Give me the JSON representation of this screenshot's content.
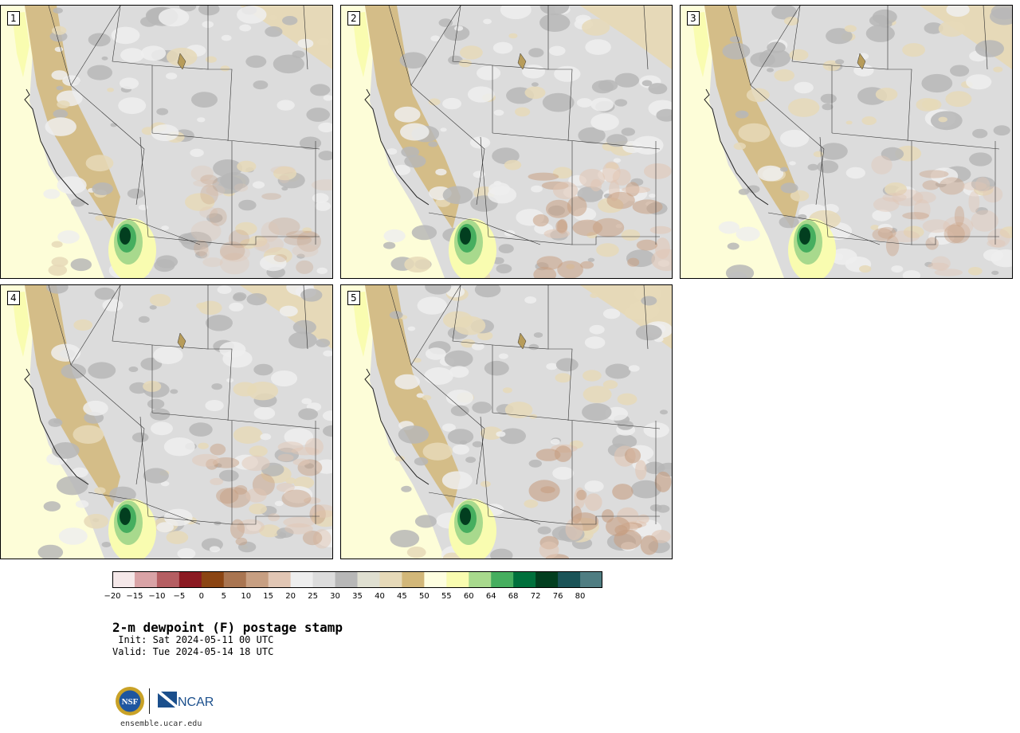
{
  "panels": [
    {
      "label": "1"
    },
    {
      "label": "2"
    },
    {
      "label": "3"
    },
    {
      "label": "4"
    },
    {
      "label": "5"
    }
  ],
  "colorbar": {
    "ticks": [
      "−20",
      "−15",
      "−10",
      "−5",
      "0",
      "5",
      "10",
      "15",
      "20",
      "25",
      "30",
      "35",
      "40",
      "45",
      "50",
      "55",
      "60",
      "64",
      "68",
      "72",
      "76",
      "80"
    ],
    "colors": [
      "#f5e8e9",
      "#d9a3a6",
      "#b55e62",
      "#8b1a22",
      "#8b4513",
      "#a97551",
      "#c79f82",
      "#e1c6b4",
      "#eeeeee",
      "#dcdcdc",
      "#b7b7b7",
      "#dfdfd1",
      "#e6d9b8",
      "#d2b779",
      "#fefee0",
      "#f9fcb0",
      "#a8d98d",
      "#46ae5f",
      "#00703c",
      "#023e1f",
      "#1a5357",
      "#4f7d82"
    ]
  },
  "title": "2-m dewpoint (F) postage stamp",
  "init_line": " Init: Sat 2024-05-11 00 UTC",
  "valid_line": "Valid: Tue 2024-05-14 18 UTC",
  "logos": {
    "nsf_text": "NSF",
    "ncar_text": "NCAR"
  },
  "site": "ensemble.ucar.edu"
}
